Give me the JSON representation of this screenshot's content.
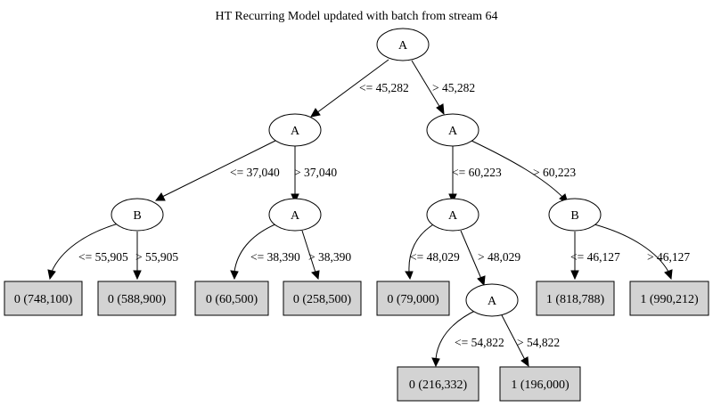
{
  "title": "HT Recurring Model updated with batch from stream 64",
  "nodes": {
    "root": "A",
    "l": "A",
    "r": "A",
    "ll": "B",
    "lr": "A",
    "rl": "A",
    "rr": "B",
    "rlr": "A"
  },
  "leaves": {
    "lll": "0 (748,100)",
    "llr": "0 (588,900)",
    "lrl": "0 (60,500)",
    "lrr": "0 (258,500)",
    "rll": "0 (79,000)",
    "rlrl": "0 (216,332)",
    "rlrr": "1 (196,000)",
    "rrl": "1 (818,788)",
    "rrr": "1 (990,212)"
  },
  "edges": {
    "root_l": "<= 45,282",
    "root_r": "> 45,282",
    "l_ll": "<= 37,040",
    "l_lr": "> 37,040",
    "r_rl": "<= 60,223",
    "r_rr": "> 60,223",
    "ll_lll": "<= 55,905",
    "ll_llr": "> 55,905",
    "lr_lrl": "<= 38,390",
    "lr_lrr": "> 38,390",
    "rl_rll": "<= 48,029",
    "rl_rlr": "> 48,029",
    "rr_rrl": "<= 46,127",
    "rr_rrr": "> 46,127",
    "rlr_rlrl": "<= 54,822",
    "rlr_rlrr": "> 54,822"
  }
}
